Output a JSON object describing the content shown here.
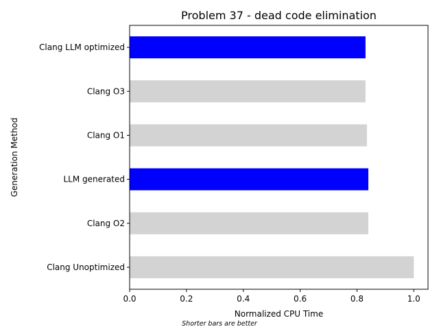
{
  "chart_data": {
    "type": "bar",
    "orientation": "horizontal",
    "title": "Problem 37 - dead code elimination",
    "xlabel": "Normalized CPU Time",
    "ylabel": "Generation Method",
    "note": "Shorter bars are better",
    "categories": [
      "Clang Unoptimized",
      "Clang O2",
      "LLM generated",
      "Clang O1",
      "Clang O3",
      "Clang LLM optimized"
    ],
    "values": [
      1.0,
      0.84,
      0.84,
      0.835,
      0.83,
      0.83
    ],
    "colors": [
      "#d3d3d3",
      "#d3d3d3",
      "#0000ff",
      "#d3d3d3",
      "#d3d3d3",
      "#0000ff"
    ],
    "xlim": [
      0,
      1.05
    ],
    "xticks": [
      0.0,
      0.2,
      0.4,
      0.6,
      0.8,
      1.0
    ],
    "xtick_labels": [
      "0.0",
      "0.2",
      "0.4",
      "0.6",
      "0.8",
      "1.0"
    ],
    "grid": false,
    "legend": "none"
  }
}
